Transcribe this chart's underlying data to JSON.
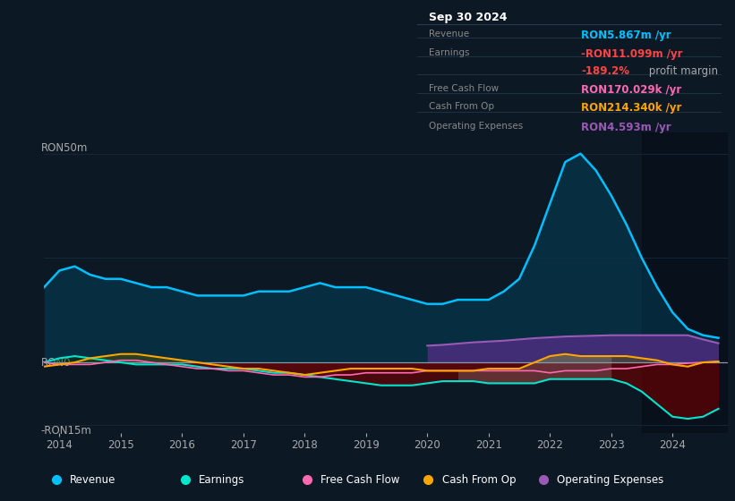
{
  "bg_color": "#0c1824",
  "chart_bg": "#0c1824",
  "grid_color": "#1a2e3e",
  "zero_line_color": "#8899aa",
  "revenue_color": "#00bfff",
  "earnings_color": "#00e5cc",
  "fcf_color": "#ff69b4",
  "cashop_color": "#ffa500",
  "opex_color": "#9b59b6",
  "x_years": [
    2013.75,
    2014.0,
    2014.25,
    2014.5,
    2014.75,
    2015.0,
    2015.25,
    2015.5,
    2015.75,
    2016.0,
    2016.25,
    2016.5,
    2016.75,
    2017.0,
    2017.25,
    2017.5,
    2017.75,
    2018.0,
    2018.25,
    2018.5,
    2018.75,
    2019.0,
    2019.25,
    2019.5,
    2019.75,
    2020.0,
    2020.25,
    2020.5,
    2020.75,
    2021.0,
    2021.25,
    2021.5,
    2021.75,
    2022.0,
    2022.25,
    2022.5,
    2022.75,
    2023.0,
    2023.25,
    2023.5,
    2023.75,
    2024.0,
    2024.25,
    2024.5,
    2024.75
  ],
  "revenue": [
    18,
    22,
    23,
    21,
    20,
    20,
    19,
    18,
    18,
    17,
    16,
    16,
    16,
    16,
    17,
    17,
    17,
    18,
    19,
    18,
    18,
    18,
    17,
    16,
    15,
    14,
    14,
    15,
    15,
    15,
    17,
    20,
    28,
    38,
    48,
    50,
    46,
    40,
    33,
    25,
    18,
    12,
    8,
    6.5,
    5.867
  ],
  "earnings": [
    0,
    1,
    1.5,
    1,
    0.5,
    0,
    -0.5,
    -0.5,
    -0.5,
    -0.5,
    -1,
    -1.5,
    -1.5,
    -1.5,
    -2,
    -2.5,
    -2.5,
    -3,
    -3.5,
    -4,
    -4.5,
    -5,
    -5.5,
    -5.5,
    -5.5,
    -5,
    -4.5,
    -4.5,
    -4.5,
    -5,
    -5,
    -5,
    -5,
    -4,
    -4,
    -4,
    -4,
    -4,
    -5,
    -7,
    -10,
    -13,
    -13.5,
    -13,
    -11.099
  ],
  "free_cash_flow": [
    0,
    -0.5,
    -0.5,
    -0.5,
    0,
    0.5,
    0.5,
    0,
    -0.5,
    -1,
    -1.5,
    -1.5,
    -2,
    -2,
    -2.5,
    -3,
    -3,
    -3.5,
    -3.5,
    -3,
    -3,
    -2.5,
    -2.5,
    -2.5,
    -2.5,
    -2,
    -2,
    -2,
    -2,
    -2,
    -2,
    -2,
    -2,
    -2.5,
    -2,
    -2,
    -2,
    -1.5,
    -1.5,
    -1,
    -0.5,
    -0.5,
    -0.2,
    0,
    0.17
  ],
  "cash_from_op": [
    -1,
    -0.5,
    0,
    1,
    1.5,
    2,
    2,
    1.5,
    1,
    0.5,
    0,
    -0.5,
    -1,
    -1.5,
    -1.5,
    -2,
    -2.5,
    -3,
    -2.5,
    -2,
    -1.5,
    -1.5,
    -1.5,
    -1.5,
    -1.5,
    -2,
    -2,
    -2,
    -2,
    -1.5,
    -1.5,
    -1.5,
    0,
    1.5,
    2,
    1.5,
    1.5,
    1.5,
    1.5,
    1,
    0.5,
    -0.5,
    -1,
    0,
    0.214
  ],
  "operating_expenses": [
    0,
    0,
    0,
    0,
    0,
    0,
    0,
    0,
    0,
    0,
    0,
    0,
    0,
    0,
    0,
    0,
    0,
    0,
    0,
    0,
    0,
    0,
    0,
    0,
    0,
    4,
    4.2,
    4.5,
    4.8,
    5,
    5.2,
    5.5,
    5.8,
    6,
    6.2,
    6.3,
    6.4,
    6.5,
    6.5,
    6.5,
    6.5,
    6.5,
    6.5,
    5.5,
    4.593
  ],
  "ylim": [
    -17,
    55
  ],
  "xlim_min": 2013.75,
  "xlim_max": 2024.9,
  "x_tick_positions": [
    2014,
    2015,
    2016,
    2017,
    2018,
    2019,
    2020,
    2021,
    2022,
    2023,
    2024
  ],
  "x_tick_labels": [
    "2014",
    "2015",
    "2016",
    "2017",
    "2018",
    "2019",
    "2020",
    "2021",
    "2022",
    "2023",
    "2024"
  ],
  "dark_overlay_x_start": 2023.5,
  "opex_x_start": 2020.0,
  "legend": [
    {
      "label": "Revenue",
      "color": "#00bfff"
    },
    {
      "label": "Earnings",
      "color": "#00e5cc"
    },
    {
      "label": "Free Cash Flow",
      "color": "#ff69b4"
    },
    {
      "label": "Cash From Op",
      "color": "#ffa500"
    },
    {
      "label": "Operating Expenses",
      "color": "#9b59b6"
    }
  ],
  "info_box": {
    "date": "Sep 30 2024",
    "rows": [
      {
        "label": "Revenue",
        "value": "RON5.867m",
        "suffix": " /yr",
        "value_color": "#00bfff"
      },
      {
        "label": "Earnings",
        "value": "-RON11.099m",
        "suffix": " /yr",
        "value_color": "#ff4444"
      },
      {
        "label": "",
        "value2_prefix": "-189.2%",
        "value2_suffix": " profit margin",
        "prefix_color": "#ff4444",
        "suffix_color": "#aaaaaa"
      },
      {
        "label": "Free Cash Flow",
        "value": "RON170.029k",
        "suffix": " /yr",
        "value_color": "#ff69b4"
      },
      {
        "label": "Cash From Op",
        "value": "RON214.340k",
        "suffix": " /yr",
        "value_color": "#ffa500"
      },
      {
        "label": "Operating Expenses",
        "value": "RON4.593m",
        "suffix": " /yr",
        "value_color": "#9b59b6"
      }
    ]
  }
}
